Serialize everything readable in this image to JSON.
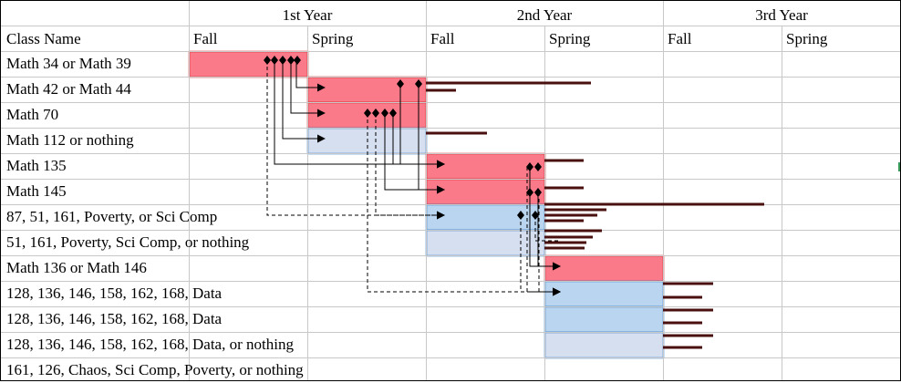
{
  "header": {
    "years": [
      {
        "label": "1st Year"
      },
      {
        "label": "2nd Year"
      },
      {
        "label": "3rd Year"
      }
    ],
    "class_name_label": "Class Name",
    "terms": [
      "Fall",
      "Spring",
      "Fall",
      "Spring",
      "Fall",
      "Spring"
    ]
  },
  "rows": [
    {
      "label": "Math 34 or Math 39"
    },
    {
      "label": "Math 42 or Math 44"
    },
    {
      "label": "Math 70"
    },
    {
      "label": "Math 112 or nothing"
    },
    {
      "label": "Math 135"
    },
    {
      "label": "Math 145"
    },
    {
      "label": "87, 51, 161, Poverty, or Sci Comp"
    },
    {
      "label": "51, 161, Poverty, Sci Comp, or nothing"
    },
    {
      "label": "Math 136 or Math 146"
    },
    {
      "label": "128, 136, 146, 158, 162, 168, Data"
    },
    {
      "label": "128, 136, 146, 158, 162, 168, Data"
    },
    {
      "label": "128, 136, 146, 158, 162, 168, Data, or nothing"
    },
    {
      "label": "161, 126, Chaos, Sci Comp, Poverty, or nothing"
    }
  ],
  "colors": {
    "required": "#fb7a8a",
    "required_border": "#d41a1a",
    "elective": "#b9d5ef",
    "elective_border": "#2f7fcf",
    "optional": "#d6dff0",
    "optional_border": "#2f7fcf",
    "arrow": "#000000",
    "bar": "#4a0f0f",
    "grid": "#c8c8c8"
  },
  "blocks": [
    {
      "row": 0,
      "term": 0,
      "kind": "required"
    },
    {
      "row": 1,
      "term": 1,
      "kind": "required"
    },
    {
      "row": 2,
      "term": 1,
      "kind": "required"
    },
    {
      "row": 3,
      "term": 1,
      "kind": "optional"
    },
    {
      "row": 4,
      "term": 2,
      "kind": "required"
    },
    {
      "row": 5,
      "term": 2,
      "kind": "required"
    },
    {
      "row": 6,
      "term": 2,
      "kind": "elective"
    },
    {
      "row": 7,
      "term": 2,
      "kind": "optional"
    },
    {
      "row": 8,
      "term": 3,
      "kind": "required"
    },
    {
      "row": 9,
      "term": 3,
      "kind": "elective"
    },
    {
      "row": 10,
      "term": 3,
      "kind": "elective"
    },
    {
      "row": 11,
      "term": 3,
      "kind": "optional"
    }
  ]
}
